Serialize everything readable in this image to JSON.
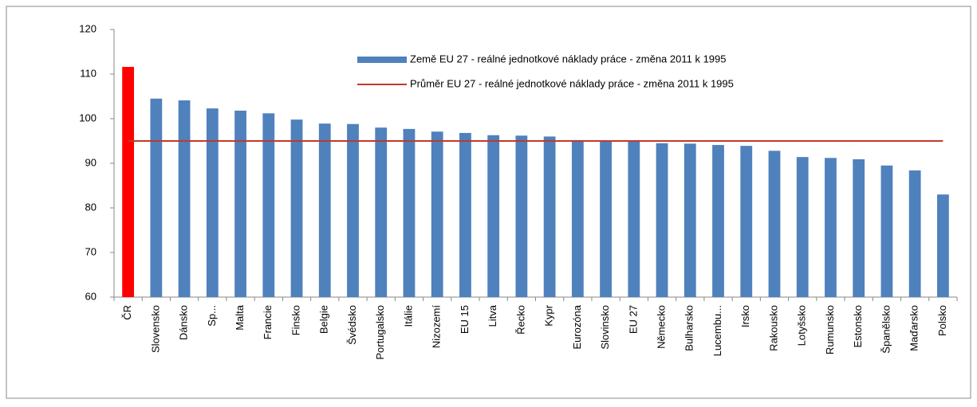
{
  "chart_data": {
    "type": "bar",
    "categories": [
      "ČR",
      "Slovensko",
      "Dánsko",
      "Sp...",
      "Malta",
      "Francie",
      "Finsko",
      "Belgie",
      "Švédsko",
      "Portugalsko",
      "Itálie",
      "Nizozemí",
      "EU 15",
      "Litva",
      "Řecko",
      "Kypr",
      "Eurozóna",
      "Slovinsko",
      "EU 27",
      "Německo",
      "Bulharsko",
      "Lucembu...",
      "Irsko",
      "Rakousko",
      "Lotyšsko",
      "Rumunsko",
      "Estonsko",
      "Španělsko",
      "Maďarsko",
      "Polsko"
    ],
    "series": [
      {
        "name": "Země EU 27 - reálné jednotkové náklady práce - změna 2011 k 1995",
        "type": "bar",
        "color": "#4f81bd",
        "colors": [
          "#ff0000",
          "#4f81bd",
          "#4f81bd",
          "#4f81bd",
          "#4f81bd",
          "#4f81bd",
          "#4f81bd",
          "#4f81bd",
          "#4f81bd",
          "#4f81bd",
          "#4f81bd",
          "#4f81bd",
          "#4f81bd",
          "#4f81bd",
          "#4f81bd",
          "#4f81bd",
          "#4f81bd",
          "#4f81bd",
          "#4f81bd",
          "#4f81bd",
          "#4f81bd",
          "#4f81bd",
          "#4f81bd",
          "#4f81bd",
          "#4f81bd",
          "#4f81bd",
          "#4f81bd",
          "#4f81bd",
          "#4f81bd",
          "#4f81bd"
        ],
        "values": [
          111.6,
          104.5,
          104.1,
          102.3,
          101.8,
          101.2,
          99.8,
          98.9,
          98.8,
          98.0,
          97.7,
          97.1,
          96.8,
          96.3,
          96.2,
          96.0,
          95.2,
          95.1,
          95.0,
          94.5,
          94.4,
          94.1,
          93.9,
          92.8,
          91.4,
          91.2,
          90.9,
          89.5,
          88.4,
          83.0
        ]
      },
      {
        "name": "Průměr EU 27 - reálné jednotkové náklady práce - změna 2011 k 1995",
        "type": "line",
        "color": "#c0392b",
        "values": [
          95,
          95,
          95,
          95,
          95,
          95,
          95,
          95,
          95,
          95,
          95,
          95,
          95,
          95,
          95,
          95,
          95,
          95,
          95,
          95,
          95,
          95,
          95,
          95,
          95,
          95,
          95,
          95,
          95,
          95
        ]
      }
    ],
    "ylim": [
      60,
      120
    ],
    "yticks": [
      60,
      70,
      80,
      90,
      100,
      110,
      120
    ],
    "grid": false,
    "legend": "top"
  }
}
